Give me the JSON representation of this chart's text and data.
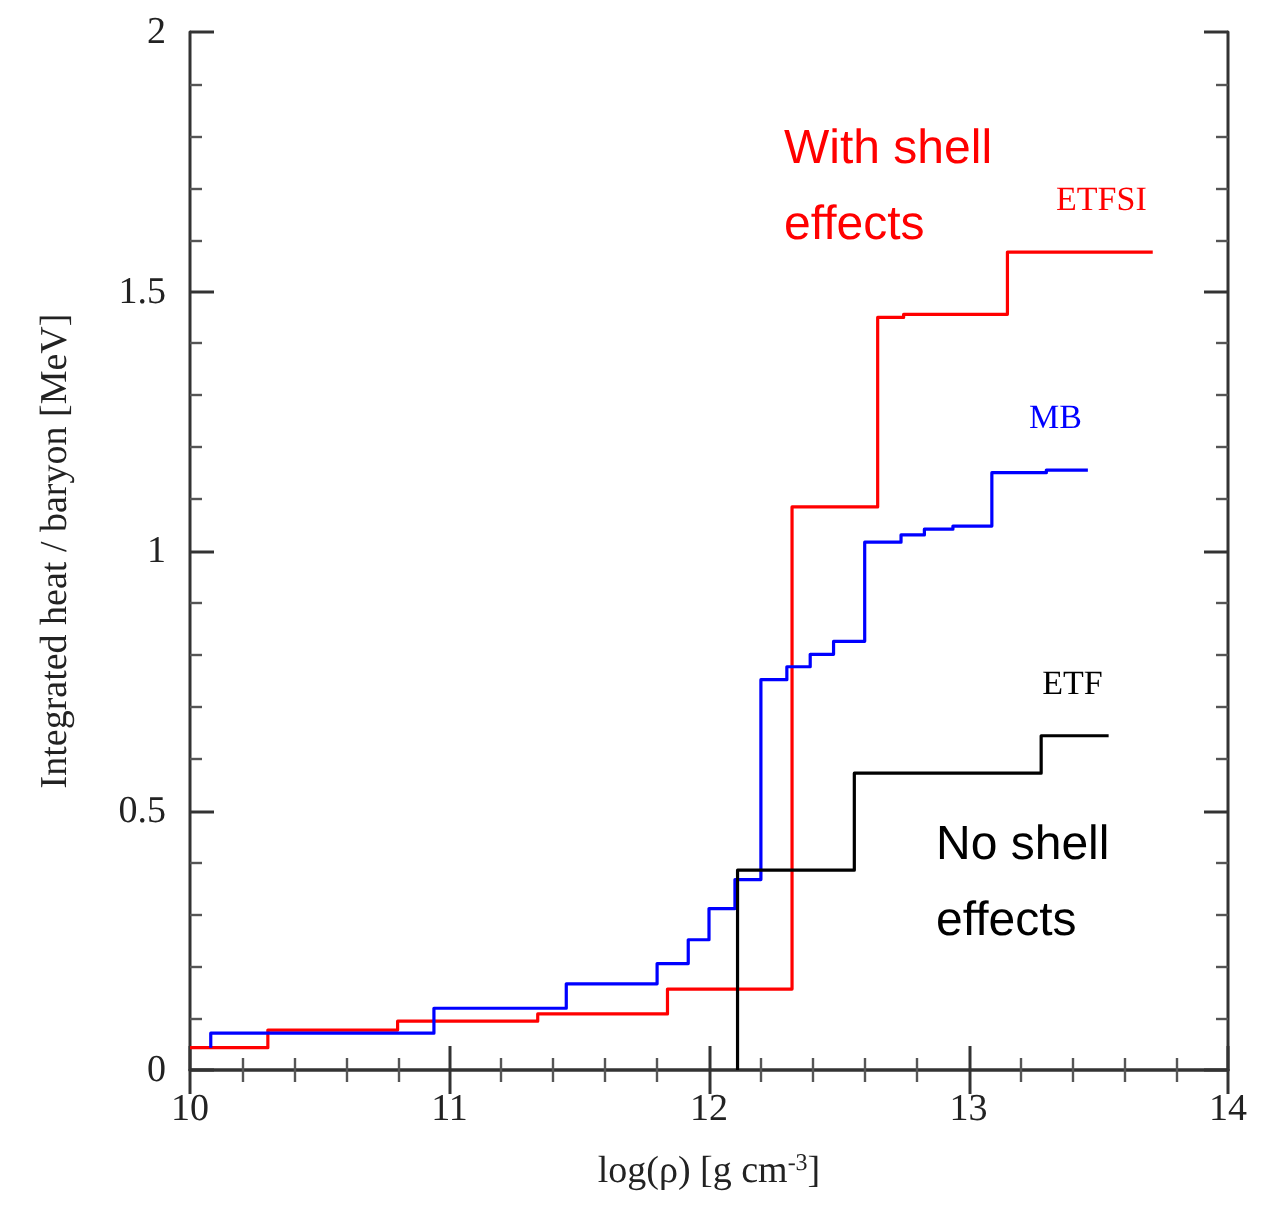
{
  "chart_data": {
    "type": "step",
    "xlabel": "log(ρ) [g cm$^{-3}$]",
    "ylabel": "Integrated heat / baryon [MeV]",
    "xlim": [
      10,
      14
    ],
    "xticks": [
      10,
      11,
      12,
      13,
      14
    ],
    "ylim": [
      0,
      2
    ],
    "yticks": [
      0,
      0.5,
      1,
      1.5,
      2
    ],
    "grid": false,
    "legend": false,
    "marker": "none",
    "line_style": "solid",
    "series": [
      {
        "name": "ETFSI",
        "color": "#ff0000",
        "x": [
          10.0,
          10.3,
          10.8,
          11.34,
          11.84,
          12.32,
          12.65,
          12.75,
          13.15,
          13.71
        ],
        "values": [
          0.043,
          0.077,
          0.094,
          0.108,
          0.156,
          1.085,
          1.45,
          1.456,
          1.576,
          1.576
        ]
      },
      {
        "name": "MB",
        "color": "#0000ff",
        "x": [
          10.08,
          10.08,
          10.94,
          11.45,
          11.8,
          11.92,
          12.0,
          12.1,
          12.2,
          12.3,
          12.39,
          12.48,
          12.6,
          12.74,
          12.83,
          12.94,
          13.09,
          13.3,
          13.46
        ],
        "values": [
          0.043,
          0.071,
          0.119,
          0.166,
          0.205,
          0.251,
          0.311,
          0.367,
          0.752,
          0.777,
          0.801,
          0.826,
          1.017,
          1.031,
          1.042,
          1.048,
          1.151,
          1.156,
          1.156
        ]
      },
      {
        "name": "ETF",
        "color": "#000000",
        "x": [
          12.11,
          12.11,
          12.56,
          13.28,
          13.54
        ],
        "values": [
          0,
          0.385,
          0.572,
          0.644,
          0.644
        ]
      }
    ],
    "annotations": [
      "With shell effects",
      "No shell effects"
    ]
  }
}
